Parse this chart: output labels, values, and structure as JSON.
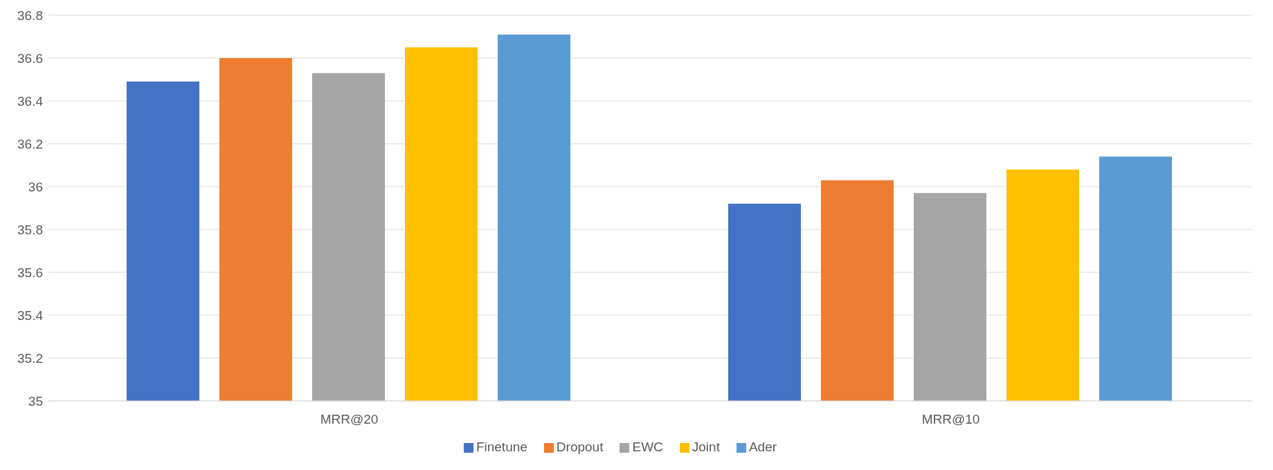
{
  "chart_data": {
    "type": "bar",
    "categories": [
      "MRR@20",
      "MRR@10"
    ],
    "series": [
      {
        "name": "Finetune",
        "color": "#4472c4",
        "values": [
          36.49,
          35.92
        ]
      },
      {
        "name": "Dropout",
        "color": "#ed7d31",
        "values": [
          36.6,
          36.03
        ]
      },
      {
        "name": "EWC",
        "color": "#a5a5a5",
        "values": [
          36.53,
          35.97
        ]
      },
      {
        "name": "Joint",
        "color": "#ffc000",
        "values": [
          36.65,
          36.08
        ]
      },
      {
        "name": "Ader",
        "color": "#5b9bd5",
        "values": [
          36.71,
          36.14
        ]
      }
    ],
    "ylim": [
      35,
      36.8
    ],
    "yticks": [
      35,
      35.2,
      35.4,
      35.6,
      35.8,
      36,
      36.2,
      36.4,
      36.6,
      36.8
    ],
    "grid": "y",
    "legend": "bottom"
  }
}
